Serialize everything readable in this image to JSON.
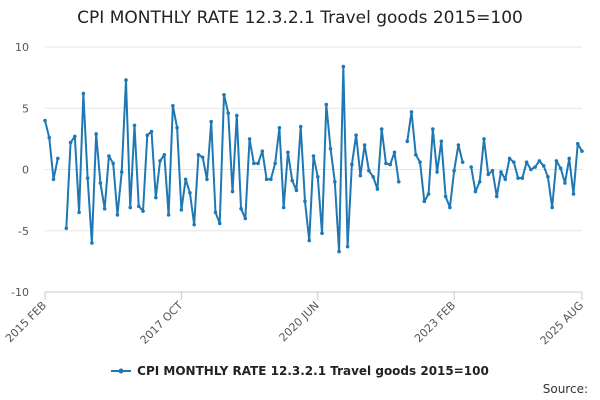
{
  "chart_data": {
    "type": "line",
    "title": "CPI MONTHLY RATE 12.3.2.1 Travel goods 2015=100",
    "xlabel": "",
    "ylabel": "",
    "ylim": [
      -10,
      10
    ],
    "yticks": [
      10,
      5,
      0,
      -5,
      -10
    ],
    "x_start": "2015 FEB",
    "x_ticks": [
      {
        "index": 0,
        "label": "2015 FEB"
      },
      {
        "index": 32,
        "label": "2017 OCT"
      },
      {
        "index": 64,
        "label": "2020 JUN"
      },
      {
        "index": 96,
        "label": "2023 FEB"
      },
      {
        "index": 126,
        "label": "2025 AUG"
      }
    ],
    "grid": true,
    "legend_position": "bottom",
    "series": [
      {
        "name": "CPI MONTHLY RATE 12.3.2.1 Travel goods 2015=100",
        "color": "#1f78b4",
        "values": [
          4.0,
          2.6,
          -0.8,
          0.9,
          null,
          -4.8,
          2.2,
          2.7,
          -3.5,
          6.2,
          -0.7,
          -6.0,
          2.9,
          -1.1,
          -3.2,
          1.1,
          0.5,
          -3.7,
          -0.2,
          7.3,
          -3.1,
          3.6,
          -3.0,
          -3.4,
          2.8,
          3.1,
          -2.3,
          0.7,
          1.2,
          -3.7,
          5.2,
          3.4,
          -3.3,
          -0.8,
          -1.9,
          -4.5,
          1.2,
          1.0,
          -0.8,
          3.9,
          -3.5,
          -4.4,
          6.1,
          4.6,
          -1.8,
          4.4,
          -3.2,
          -4.0,
          2.5,
          0.5,
          0.5,
          1.5,
          -0.8,
          -0.8,
          0.5,
          3.4,
          -3.1,
          1.4,
          -0.9,
          -1.7,
          3.5,
          -2.6,
          -5.8,
          1.1,
          -0.6,
          -5.2,
          5.3,
          1.7,
          -1.0,
          -6.7,
          8.4,
          -6.3,
          0.4,
          2.8,
          -0.5,
          2.0,
          -0.1,
          -0.6,
          -1.6,
          3.3,
          0.5,
          0.4,
          1.4,
          -1.0,
          null,
          2.3,
          4.7,
          1.2,
          0.6,
          -2.6,
          -2.0,
          3.3,
          -0.2,
          2.3,
          -2.2,
          -3.1,
          -0.1,
          2.0,
          0.6,
          null,
          0.2,
          -1.8,
          -1.0,
          2.5,
          -0.4,
          -0.1,
          -2.2,
          -0.2,
          -0.8,
          0.9,
          0.6,
          -0.7,
          -0.7,
          0.6,
          0.0,
          0.2,
          0.7,
          0.3,
          -0.6,
          -3.1,
          0.7,
          0.1,
          -1.1,
          0.9,
          -2.0,
          2.1,
          1.5
        ]
      }
    ]
  },
  "source_label": "Source:"
}
